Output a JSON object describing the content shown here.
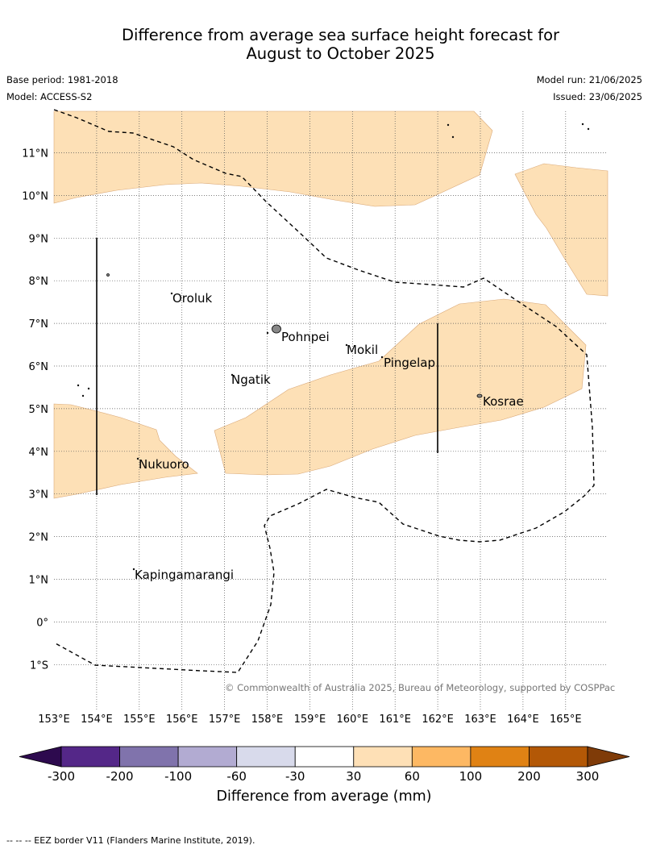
{
  "title_line1": "Difference from average sea surface height forecast for",
  "title_line2": "August to October 2025",
  "base_period": "Base period: 1981-2018",
  "model": "Model: ACCESS-S2",
  "model_run": "Model run: 21/06/2025",
  "issued": "Issued: 23/06/2025",
  "copyright": "© Commonwealth of Australia 2025, Bureau of Meteorology, supported by COSPPac",
  "lon_labels": [
    "153°E",
    "154°E",
    "155°E",
    "156°E",
    "157°E",
    "158°E",
    "159°E",
    "160°E",
    "161°E",
    "162°E",
    "163°E",
    "164°E",
    "165°E"
  ],
  "lat_labels": [
    "11°N",
    "10°N",
    "9°N",
    "8°N",
    "7°N",
    "6°N",
    "5°N",
    "4°N",
    "3°N",
    "2°N",
    "1°N",
    "0°",
    "1°S"
  ],
  "places": [
    {
      "name": "Oroluk"
    },
    {
      "name": "Pohnpei"
    },
    {
      "name": "Mokil"
    },
    {
      "name": "Pingelap"
    },
    {
      "name": "Ngatik"
    },
    {
      "name": "Kosrae"
    },
    {
      "name": "Nukuoro"
    },
    {
      "name": "Kapingamarangi"
    }
  ],
  "colorbar": {
    "title": "Difference from average (mm)",
    "tick_labels": [
      "-300",
      "-200",
      "-100",
      "-60",
      "-30",
      "30",
      "60",
      "100",
      "200",
      "300"
    ],
    "colors": [
      "#2d0a4e",
      "#542788",
      "#8073ac",
      "#b2abd2",
      "#d8daeb",
      "#ffffff",
      "#fee0b6",
      "#fdb863",
      "#e08214",
      "#b35806",
      "#7f3b08"
    ]
  },
  "anomaly_fill_color": "#fde0b6",
  "footer": "-- -- -- EEZ border V11 (Flanders Marine Institute, 2019)."
}
